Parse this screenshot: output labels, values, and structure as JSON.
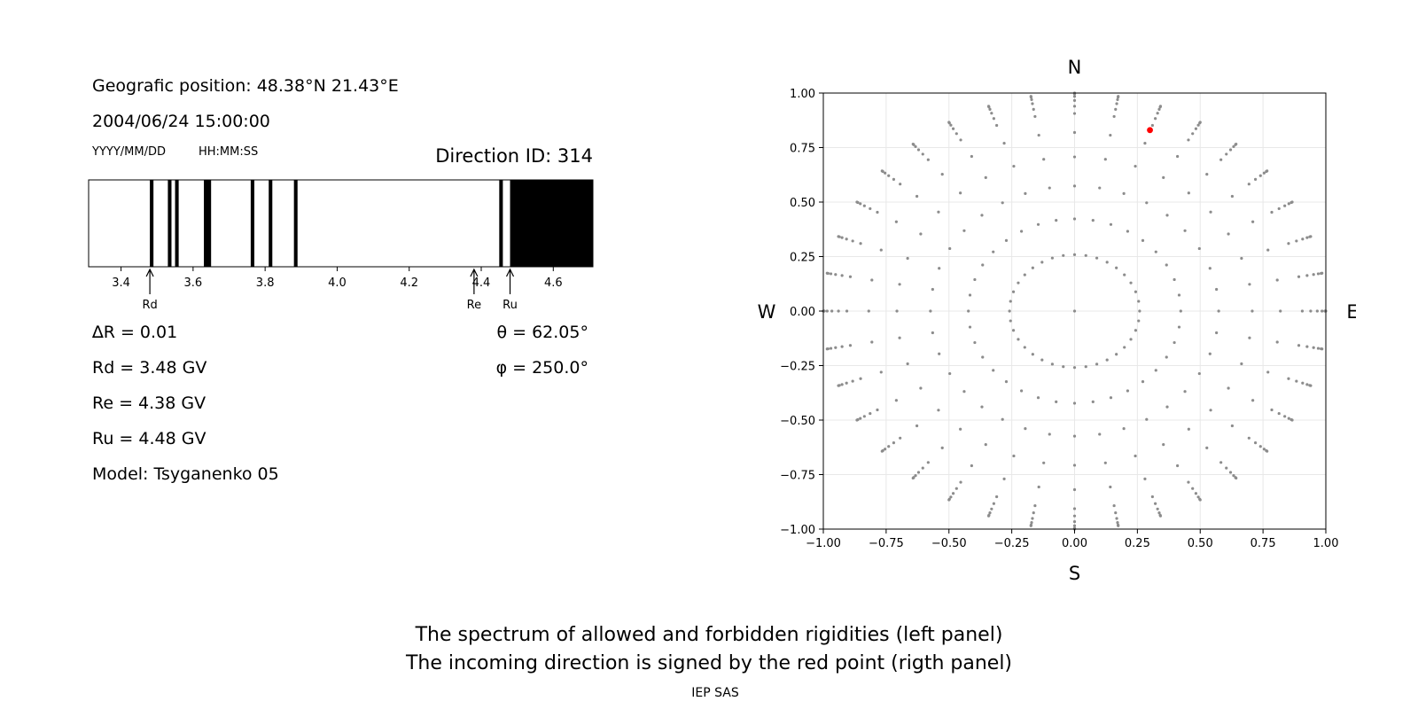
{
  "header": {
    "position": "Geografic position: 48.38°N 21.43°E",
    "datetime": "2004/06/24 15:00:00",
    "date_format": "YYYY/MM/DD",
    "time_format": "HH:MM:SS",
    "direction": "Direction ID: 314"
  },
  "stats": {
    "delta_r": "∆R = 0.01",
    "rd": "Rd = 3.48 GV",
    "re": "Re = 4.38 GV",
    "ru": "Ru = 4.48 GV",
    "model": "Model: Tsyganenko 05",
    "theta": "θ = 62.05°",
    "phi": "φ = 250.0°"
  },
  "footer": {
    "line1": "The spectrum of allowed and forbidden rigidities (left panel)",
    "line2": "The incoming direction is signed by the red point (rigth panel)",
    "credit": "IEP SAS"
  },
  "chart_data": [
    {
      "type": "bar",
      "description_role": "rigidity spectrum",
      "xlim": [
        3.31,
        4.71
      ],
      "x_ticks": [
        3.4,
        3.6,
        3.8,
        4.0,
        4.2,
        4.4,
        4.6
      ],
      "forbidden_intervals": [
        [
          3.48,
          3.49
        ],
        [
          3.53,
          3.54
        ],
        [
          3.55,
          3.56
        ],
        [
          3.63,
          3.65
        ],
        [
          3.76,
          3.77
        ],
        [
          3.81,
          3.82
        ],
        [
          3.88,
          3.89
        ],
        [
          4.45,
          4.46
        ],
        [
          4.48,
          4.71
        ]
      ],
      "markers": [
        {
          "label": "Rd",
          "value": 3.48
        },
        {
          "label": "Re",
          "value": 4.38
        },
        {
          "label": "Ru",
          "value": 4.48
        }
      ],
      "colors": {
        "forbidden": "#000000",
        "allowed": "#ffffff"
      }
    },
    {
      "type": "scatter",
      "xlim": [
        -1.0,
        1.0
      ],
      "ylim": [
        -1.0,
        1.0
      ],
      "x_ticks": [
        "−1.00",
        "−0.75",
        "−0.50",
        "−0.25",
        "0.00",
        "0.25",
        "0.50",
        "0.75",
        "1.00"
      ],
      "y_ticks": [
        "1.00",
        "0.75",
        "0.50",
        "0.25",
        "0.00",
        "−0.25",
        "−0.50",
        "−0.75",
        "−1.00"
      ],
      "compass": {
        "north": "N",
        "south": "S",
        "west": "W",
        "east": "E"
      },
      "grid": true,
      "grid_points": {
        "zenith_angles_deg": [
          0,
          15,
          25,
          35,
          45,
          55,
          65,
          70,
          75,
          80,
          85,
          90
        ],
        "azimuth_step_deg": 10,
        "projection": "sin(zenith)",
        "color": "#8c8c8c"
      },
      "highlight": {
        "theta_deg": 62.05,
        "phi_deg": 250.0,
        "x": 0.3,
        "y": 0.83,
        "color": "#ff0000"
      }
    }
  ]
}
